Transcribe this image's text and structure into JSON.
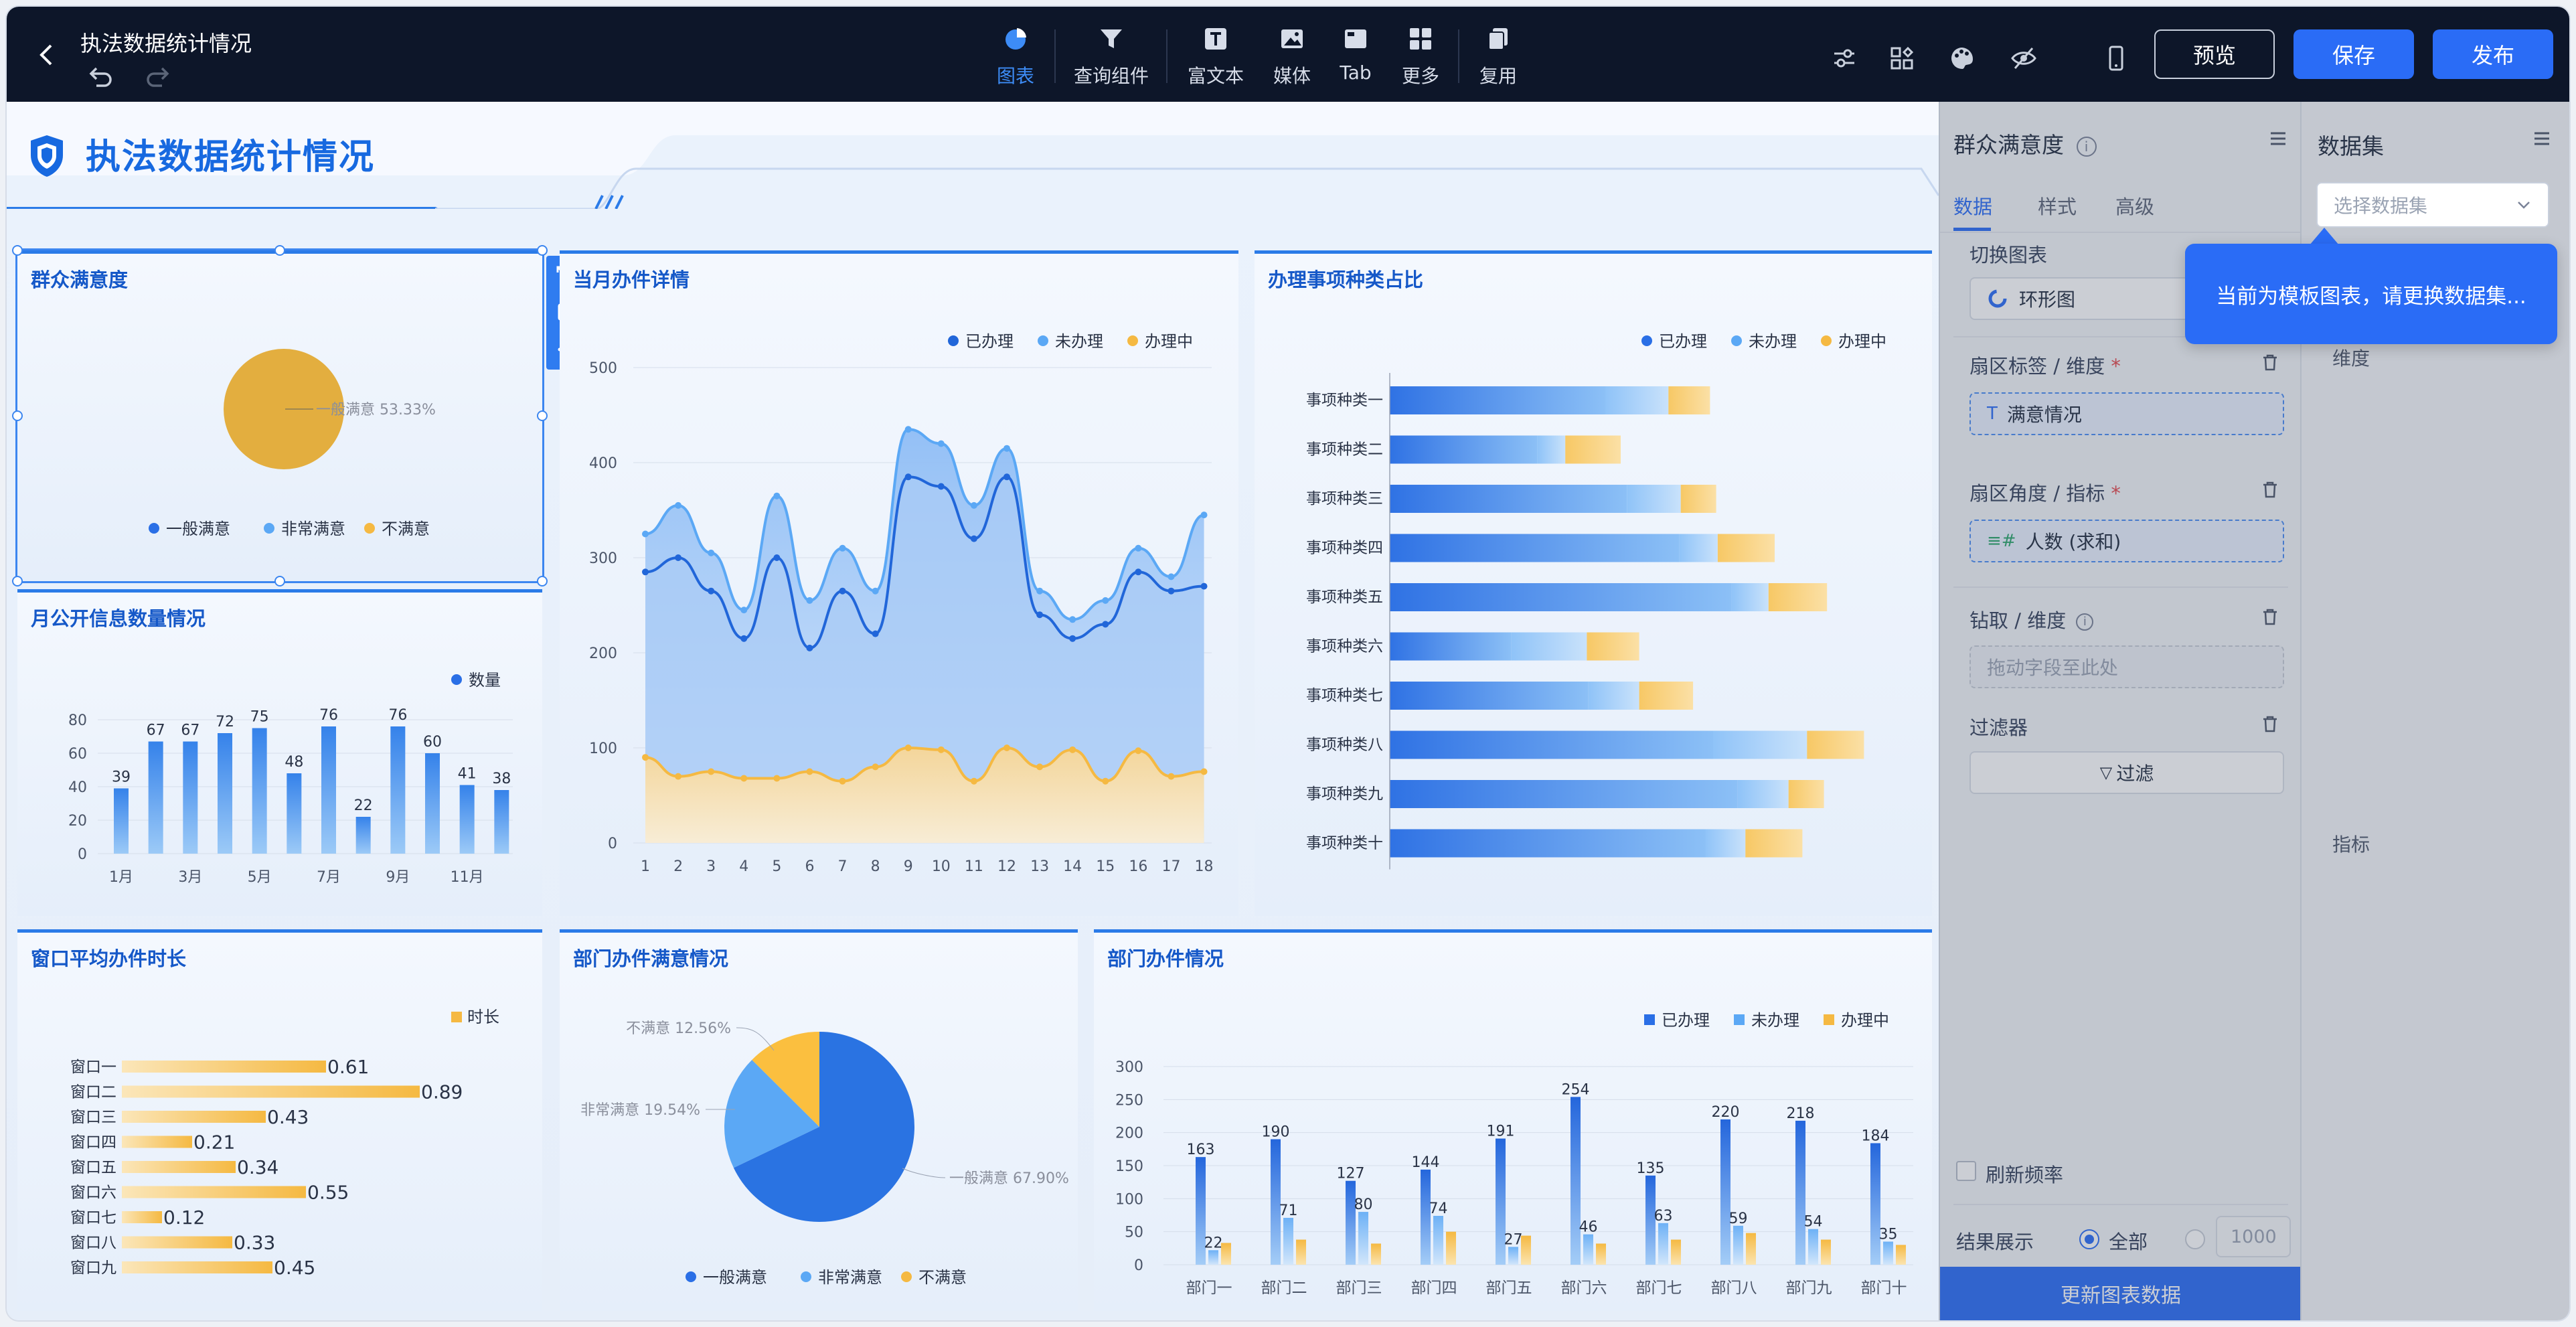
{
  "header": {
    "title": "执法数据统计情况",
    "tools": [
      {
        "label": "图表",
        "icon": "chart-pie-icon"
      },
      {
        "label": "查询组件",
        "icon": "filter-funnel-icon"
      },
      {
        "label": "富文本",
        "icon": "rich-text-icon"
      },
      {
        "label": "媒体",
        "icon": "image-icon"
      },
      {
        "label": "Tab",
        "icon": "tab-icon"
      },
      {
        "label": "更多",
        "icon": "grid-more-icon"
      },
      {
        "label": "复用",
        "icon": "copy-reuse-icon"
      }
    ],
    "preview_label": "预览",
    "save_label": "保存",
    "publish_label": "发布",
    "accent": "#2a6cf6"
  },
  "dashboard": {
    "title": "执法数据统计情况",
    "panels": {
      "satisfaction": "群众满意度",
      "monthly_detail": "当月办件详情",
      "category_share": "办理事项种类占比",
      "public_info": "月公开信息数量情况",
      "window_time": "窗口平均办件时长",
      "dept_satisfaction": "部门办件满意情况",
      "dept_cases": "部门办件情况"
    }
  },
  "chart_data": [
    {
      "id": "satisfaction",
      "type": "pie",
      "title": "群众满意度",
      "slices": [
        {
          "name": "一般满意",
          "value": 53.33,
          "label": "一般满意 53.33%"
        }
      ],
      "legend": [
        "一般满意",
        "非常满意",
        "不满意"
      ],
      "colors": [
        "#e3ae3f",
        "#4fa3f7",
        "#f6b73c"
      ]
    },
    {
      "id": "monthly_detail",
      "type": "area",
      "title": "当月办件详情",
      "x": [
        1,
        2,
        3,
        4,
        5,
        6,
        7,
        8,
        9,
        10,
        11,
        12,
        13,
        14,
        15,
        16,
        17,
        18
      ],
      "xticks": [
        "1",
        "2",
        "3",
        "4",
        "5",
        "6",
        "7",
        "8",
        "9",
        "10",
        "11",
        "12",
        "13",
        "14",
        "15",
        "16",
        "17",
        "18"
      ],
      "ylim": [
        0,
        500
      ],
      "yticks": [
        "0",
        "100",
        "200",
        "300",
        "400",
        "500"
      ],
      "series": [
        {
          "name": "已办理",
          "values": [
            285,
            300,
            265,
            215,
            300,
            205,
            265,
            220,
            385,
            375,
            320,
            385,
            240,
            215,
            230,
            285,
            265,
            270
          ]
        },
        {
          "name": "未办理",
          "values": [
            325,
            355,
            305,
            245,
            365,
            255,
            310,
            265,
            435,
            420,
            355,
            415,
            265,
            235,
            255,
            310,
            280,
            345
          ]
        },
        {
          "name": "办理中",
          "values": [
            90,
            70,
            75,
            68,
            68,
            75,
            65,
            80,
            100,
            98,
            65,
            100,
            80,
            98,
            65,
            97,
            70,
            75
          ]
        }
      ],
      "legend": [
        "已办理",
        "未办理",
        "办理中"
      ]
    },
    {
      "id": "category_share",
      "type": "bar",
      "title": "办理事项种类占比",
      "orientation": "horizontal-stacked",
      "categories": [
        "事项种类一",
        "事项种类二",
        "事项种类三",
        "事项种类四",
        "事项种类五",
        "事项种类六",
        "事项种类七",
        "事项种类八",
        "事项种类九",
        "事项种类十"
      ],
      "series": [
        {
          "name": "已办理",
          "values": [
            140,
            96,
            154,
            188,
            222,
            79,
            129,
            210,
            226,
            205
          ]
        },
        {
          "name": "未办理",
          "values": [
            41,
            18,
            35,
            25,
            24,
            49,
            33,
            61,
            33,
            26
          ]
        },
        {
          "name": "办理中",
          "values": [
            27,
            36,
            23,
            37,
            38,
            34,
            35,
            37,
            23,
            37
          ]
        }
      ],
      "legend": [
        "已办理",
        "未办理",
        "办理中"
      ]
    },
    {
      "id": "public_info",
      "type": "bar",
      "title": "月公开信息数量情况",
      "categories": [
        "1月",
        "2月",
        "3月",
        "4月",
        "5月",
        "6月",
        "7月",
        "8月",
        "9月",
        "10月",
        "11月",
        "12月"
      ],
      "xticks": [
        "1月",
        "3月",
        "5月",
        "7月",
        "9月",
        "11月"
      ],
      "series": [
        {
          "name": "数量",
          "values": [
            39,
            67,
            67,
            72,
            75,
            48,
            76,
            22,
            76,
            60,
            41,
            38
          ]
        }
      ],
      "ylim": [
        0,
        80
      ],
      "yticks": [
        "0",
        "20",
        "40",
        "60",
        "80"
      ]
    },
    {
      "id": "window_time",
      "type": "bar",
      "title": "窗口平均办件时长",
      "orientation": "horizontal",
      "categories": [
        "窗口一",
        "窗口二",
        "窗口三",
        "窗口四",
        "窗口五",
        "窗口六",
        "窗口七",
        "窗口八",
        "窗口九"
      ],
      "series": [
        {
          "name": "时长",
          "values": [
            0.61,
            0.89,
            0.43,
            0.21,
            0.34,
            0.55,
            0.12,
            0.33,
            0.45
          ]
        }
      ]
    },
    {
      "id": "dept_satisfaction",
      "type": "pie",
      "title": "部门办件满意情况",
      "slices": [
        {
          "name": "一般满意",
          "value": 67.9,
          "label": "一般满意 67.90%"
        },
        {
          "name": "非常满意",
          "value": 19.54,
          "label": "非常满意 19.54%"
        },
        {
          "name": "不满意",
          "value": 12.56,
          "label": "不满意 12.56%"
        }
      ],
      "legend": [
        "一般满意",
        "非常满意",
        "不满意"
      ]
    },
    {
      "id": "dept_cases",
      "type": "bar",
      "title": "部门办件情况",
      "categories": [
        "部门一",
        "部门二",
        "部门三",
        "部门四",
        "部门五",
        "部门六",
        "部门七",
        "部门八",
        "部门九",
        "部门十"
      ],
      "series": [
        {
          "name": "已办理",
          "values": [
            163,
            190,
            127,
            144,
            191,
            254,
            135,
            220,
            218,
            184
          ]
        },
        {
          "name": "未办理",
          "values": [
            22,
            71,
            80,
            74,
            27,
            46,
            63,
            59,
            54,
            35
          ]
        },
        {
          "name": "办理中",
          "values": [
            33,
            38,
            32,
            50,
            44,
            32,
            38,
            48,
            38,
            30
          ]
        }
      ],
      "show_labels_for": [
        "已办理",
        "未办理"
      ],
      "ylim": [
        0,
        300
      ],
      "yticks": [
        "0",
        "50",
        "100",
        "150",
        "200",
        "250",
        "300"
      ],
      "legend": [
        "已办理",
        "未办理",
        "办理中"
      ]
    }
  ],
  "config_panel": {
    "title": "群众满意度",
    "tabs": [
      "数据",
      "样式",
      "高级"
    ],
    "switch_chart_label": "切换图表",
    "chart_type_value": "环形图",
    "sector_label_dim": "扇区标签 / 维度",
    "sector_label_value": "满意情况",
    "sector_angle_metric": "扇区角度 / 指标",
    "sector_angle_value": "人数 (求和)",
    "drill_label": "钻取 / 维度",
    "drill_placeholder": "拖动字段至此处",
    "filter_label": "过滤器",
    "filter_button": "过滤",
    "refresh_label": "刷新频率",
    "result_label": "结果展示",
    "result_all": "全部",
    "result_limit": "1000",
    "update_button": "更新图表数据"
  },
  "dataset_panel": {
    "title": "数据集",
    "select_placeholder": "选择数据集",
    "dimension_label": "维度",
    "metric_label": "指标",
    "tooltip": "当前为模板图表，请更换数据集..."
  }
}
